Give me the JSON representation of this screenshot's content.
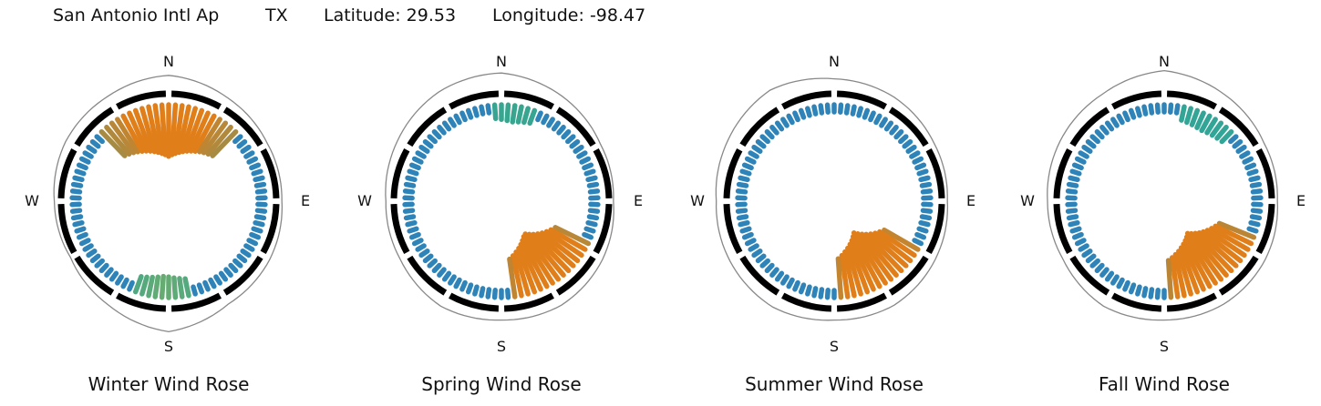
{
  "header": {
    "station": "San Antonio Intl Ap",
    "state": "TX",
    "latitude": "Latitude: 29.53",
    "longitude": "Longitude: -98.47"
  },
  "compass": {
    "n": "N",
    "e": "E",
    "s": "S",
    "w": "W"
  },
  "chart_data": [
    {
      "type": "wind-rose",
      "title": "Winter Wind Rose",
      "directions_deg": [
        0,
        30,
        60,
        90,
        120,
        150,
        180,
        210,
        240,
        270,
        300,
        330
      ],
      "outline_radius_rel": [
        1.08,
        1.02,
        0.98,
        0.97,
        1.0,
        1.02,
        1.12,
        1.03,
        0.97,
        0.98,
        1.02,
        1.04
      ],
      "dominant": [
        {
          "from_deg": 315,
          "to_deg": 45,
          "strength": 0.85,
          "color": "#e07e1a"
        },
        {
          "from_deg": 165,
          "to_deg": 200,
          "strength": 0.25,
          "color": "#c8b82a"
        }
      ]
    },
    {
      "type": "wind-rose",
      "title": "Spring Wind Rose",
      "directions_deg": [
        0,
        30,
        60,
        90,
        120,
        150,
        180,
        210,
        240,
        270,
        300,
        330
      ],
      "outline_radius_rel": [
        1.1,
        1.04,
        0.98,
        0.96,
        1.0,
        1.03,
        1.02,
        1.04,
        1.0,
        0.99,
        1.03,
        1.08
      ],
      "dominant": [
        {
          "from_deg": 115,
          "to_deg": 175,
          "strength": 0.95,
          "color": "#e07e1a"
        },
        {
          "from_deg": 355,
          "to_deg": 20,
          "strength": 0.15,
          "color": "#4fa36a"
        }
      ]
    },
    {
      "type": "wind-rose",
      "title": "Summer Wind Rose",
      "directions_deg": [
        0,
        30,
        60,
        90,
        120,
        150,
        180,
        210,
        240,
        270,
        300,
        330
      ],
      "outline_radius_rel": [
        1.05,
        1.03,
        0.99,
        0.97,
        1.0,
        1.03,
        1.02,
        1.05,
        1.03,
        1.01,
        1.05,
        1.1
      ],
      "dominant": [
        {
          "from_deg": 118,
          "to_deg": 178,
          "strength": 1.0,
          "color": "#e07e1a"
        }
      ]
    },
    {
      "type": "wind-rose",
      "title": "Fall Wind Rose",
      "directions_deg": [
        0,
        30,
        60,
        90,
        120,
        150,
        180,
        210,
        240,
        270,
        300,
        330
      ],
      "outline_radius_rel": [
        1.12,
        1.05,
        0.99,
        0.97,
        1.0,
        1.02,
        1.02,
        1.04,
        1.0,
        1.0,
        1.03,
        1.06
      ],
      "dominant": [
        {
          "from_deg": 110,
          "to_deg": 178,
          "strength": 0.95,
          "color": "#e07e1a"
        },
        {
          "from_deg": 10,
          "to_deg": 45,
          "strength": 0.15,
          "color": "#33a597"
        }
      ]
    }
  ],
  "colors": {
    "calm": "#2e84b8",
    "mid": "#33a597",
    "high": "#e07e1a",
    "ring": "#000000",
    "outline": "#888888"
  }
}
